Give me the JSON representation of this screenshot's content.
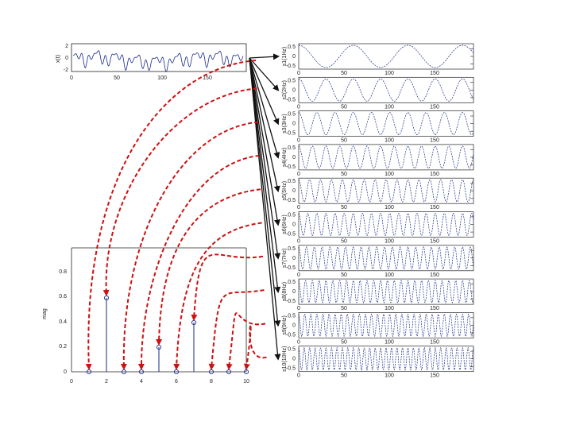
{
  "signal_plot": {
    "ylabel": "x(t)",
    "yticks": [
      "2",
      "0",
      "-2"
    ],
    "xticks": [
      "0",
      "50",
      "100",
      "150"
    ]
  },
  "spectrum_plot": {
    "ylabel": "mag",
    "yticks": [
      "0.8",
      "0.6",
      "0.4",
      "0.2",
      "0"
    ],
    "xticks": [
      "0",
      "2",
      "4",
      "6",
      "8",
      "10"
    ]
  },
  "component_plots": {
    "xticks": [
      "0",
      "50",
      "100",
      "150"
    ],
    "yticks": [
      "0.5",
      "0",
      "-0.5"
    ],
    "panels": [
      {
        "label": "s1(1Hz)"
      },
      {
        "label": "s2(2Hz)"
      },
      {
        "label": "s3(3Hz)"
      },
      {
        "label": "s4(4Hz)"
      },
      {
        "label": "s5(5Hz)"
      },
      {
        "label": "s6(6Hz)"
      },
      {
        "label": "s7(7Hz)"
      },
      {
        "label": "s8(8Hz)"
      },
      {
        "label": "s9(9Hz)"
      },
      {
        "label": "s10(10Hz)"
      }
    ]
  },
  "chart_data": {
    "type": "line",
    "spectrum": {
      "x": [
        1,
        2,
        3,
        4,
        5,
        6,
        7,
        8,
        9,
        10
      ],
      "values": [
        0,
        0.6,
        0,
        0,
        0.2,
        0,
        0.4,
        0,
        0,
        0
      ]
    },
    "components_hz": [
      1,
      2,
      3,
      4,
      5,
      6,
      7,
      8,
      9,
      10
    ]
  },
  "colors": {
    "arrow_red": "#cc1111",
    "arrow_black": "#111111",
    "wave": "#1a2a8a",
    "stem": "#1a2a8a"
  }
}
